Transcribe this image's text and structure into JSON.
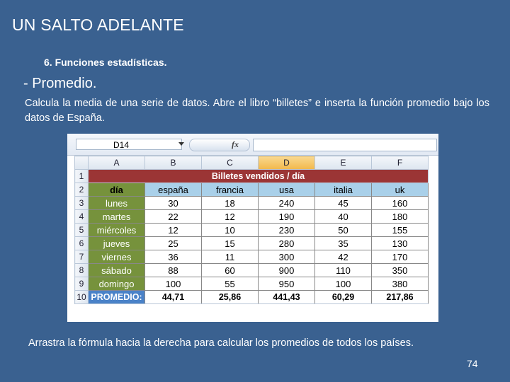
{
  "slide": {
    "title": "UN SALTO ADELANTE",
    "subtitle": "6. Funciones estadísticas.",
    "heading": "- Promedio.",
    "description": "Calcula la media de una serie de datos. Abre el libro “billetes” e inserta la función promedio bajo los datos de España.",
    "footer": "Arrastra la fórmula hacia la derecha para calcular los promedios de todos los países.",
    "page_number": "74"
  },
  "spreadsheet": {
    "name_box": "D14",
    "fx_label": "fx",
    "selected_column": "D",
    "column_headers": [
      "A",
      "B",
      "C",
      "D",
      "E",
      "F"
    ],
    "row_headers": [
      "1",
      "2",
      "3",
      "4",
      "5",
      "6",
      "7",
      "8",
      "9",
      "10"
    ],
    "banner": "Billetes vendidos / día",
    "header_row": [
      "día",
      "españa",
      "francia",
      "usa",
      "italia",
      "uk"
    ],
    "rows": [
      [
        "lunes",
        "30",
        "18",
        "240",
        "45",
        "160"
      ],
      [
        "martes",
        "22",
        "12",
        "190",
        "40",
        "180"
      ],
      [
        "miércoles",
        "12",
        "10",
        "230",
        "50",
        "155"
      ],
      [
        "jueves",
        "25",
        "15",
        "280",
        "35",
        "130"
      ],
      [
        "viernes",
        "36",
        "11",
        "300",
        "42",
        "170"
      ],
      [
        "sábado",
        "88",
        "60",
        "900",
        "110",
        "350"
      ],
      [
        "domingo",
        "100",
        "55",
        "950",
        "100",
        "380"
      ]
    ],
    "average_row": [
      "PROMEDIO:",
      "44,71",
      "25,86",
      "441,43",
      "60,29",
      "217,86"
    ]
  },
  "colors": {
    "background": "#3a6190",
    "banner": "#9b3535",
    "day_column": "#76923c",
    "country_header": "#a9d0e9",
    "average_label": "#4a82c8",
    "selected_column_header": "#f2b84b"
  }
}
